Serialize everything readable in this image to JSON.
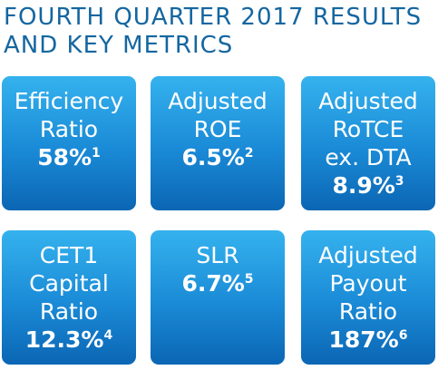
{
  "header": {
    "title_lines": [
      "FOURTH QUARTER 2017 RESULTS",
      "AND KEY METRICS"
    ]
  },
  "tiles": [
    {
      "label_lines": [
        "Efficiency",
        "Ratio"
      ],
      "value": "58%",
      "footnote": "1"
    },
    {
      "label_lines": [
        "Adjusted",
        "ROE"
      ],
      "value": "6.5%",
      "footnote": "2"
    },
    {
      "label_lines": [
        "Adjusted",
        "RoTCE",
        "ex. DTA"
      ],
      "value": "8.9%",
      "footnote": "3"
    },
    {
      "label_lines": [
        "CET1",
        "Capital",
        "Ratio"
      ],
      "value": "12.3%",
      "footnote": "4"
    },
    {
      "label_lines": [
        "SLR"
      ],
      "value": "6.7%",
      "footnote": "5"
    },
    {
      "label_lines": [
        "Adjusted",
        "Payout",
        "Ratio"
      ],
      "value": "187%",
      "footnote": "6"
    }
  ]
}
